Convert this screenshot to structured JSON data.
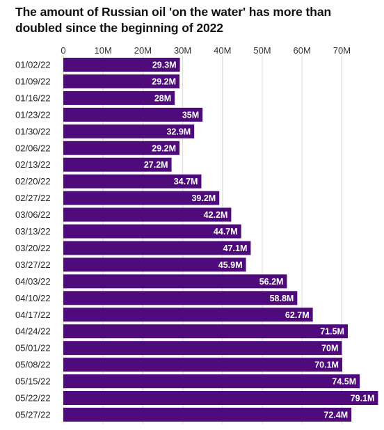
{
  "chart_data": {
    "type": "bar",
    "orientation": "horizontal",
    "title": "The amount of Russian oil 'on the water' has more than doubled since the beginning of 2022",
    "categories": [
      "01/02/22",
      "01/09/22",
      "01/16/22",
      "01/23/22",
      "01/30/22",
      "02/06/22",
      "02/13/22",
      "02/20/22",
      "02/27/22",
      "03/06/22",
      "03/13/22",
      "03/20/22",
      "03/27/22",
      "04/03/22",
      "04/10/22",
      "04/17/22",
      "04/24/22",
      "05/01/22",
      "05/08/22",
      "05/15/22",
      "05/22/22",
      "05/27/22"
    ],
    "values": [
      29.3,
      29.2,
      28,
      35,
      32.9,
      29.2,
      27.2,
      34.7,
      39.2,
      42.2,
      44.7,
      47.1,
      45.9,
      56.2,
      58.8,
      62.7,
      71.5,
      70,
      70.1,
      74.5,
      79.1,
      72.4
    ],
    "data_labels": [
      "29.3M",
      "29.2M",
      "28M",
      "35M",
      "32.9M",
      "29.2M",
      "27.2M",
      "34.7M",
      "39.2M",
      "42.2M",
      "44.7M",
      "47.1M",
      "45.9M",
      "56.2M",
      "58.8M",
      "62.7M",
      "71.5M",
      "70M",
      "70.1M",
      "74.5M",
      "79.1M",
      "72.4M"
    ],
    "x_ticks": [
      0,
      10,
      20,
      30,
      40,
      50,
      60,
      70
    ],
    "x_tick_labels": [
      "0",
      "10M",
      "20M",
      "30M",
      "40M",
      "50M",
      "60M",
      "70M"
    ],
    "xlim": [
      0,
      80
    ],
    "axis_position": "top",
    "grid": true,
    "colors": {
      "bar": "#4f0a7c",
      "grid": "#d9d9d9",
      "label": "#ffffff"
    }
  }
}
